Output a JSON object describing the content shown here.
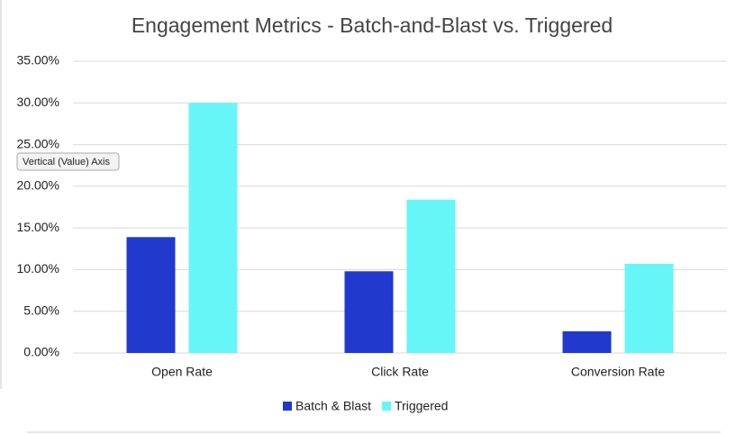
{
  "chart_data": {
    "type": "bar",
    "title": "Engagement Metrics - Batch-and-Blast vs. Triggered",
    "categories": [
      "Open Rate",
      "Click Rate",
      "Conversion Rate"
    ],
    "series": [
      {
        "name": "Batch & Blast",
        "color": "#2139cc",
        "values": [
          13.9,
          9.8,
          2.6
        ]
      },
      {
        "name": "Triggered",
        "color": "#66f6f8",
        "values": [
          30.0,
          18.4,
          10.7
        ]
      }
    ],
    "ylim": [
      0,
      35
    ],
    "yticks": [
      {
        "value": 0,
        "label": "0.00%"
      },
      {
        "value": 5,
        "label": "5.00%"
      },
      {
        "value": 10,
        "label": "10.00%"
      },
      {
        "value": 15,
        "label": "15.00%"
      },
      {
        "value": 20,
        "label": "20.00%"
      },
      {
        "value": 25,
        "label": "25.00%"
      },
      {
        "value": 30,
        "label": "30.00%"
      },
      {
        "value": 35,
        "label": "35.00%"
      }
    ],
    "grid": true,
    "legend": "bottom",
    "tooltip": "Vertical (Value) Axis"
  }
}
